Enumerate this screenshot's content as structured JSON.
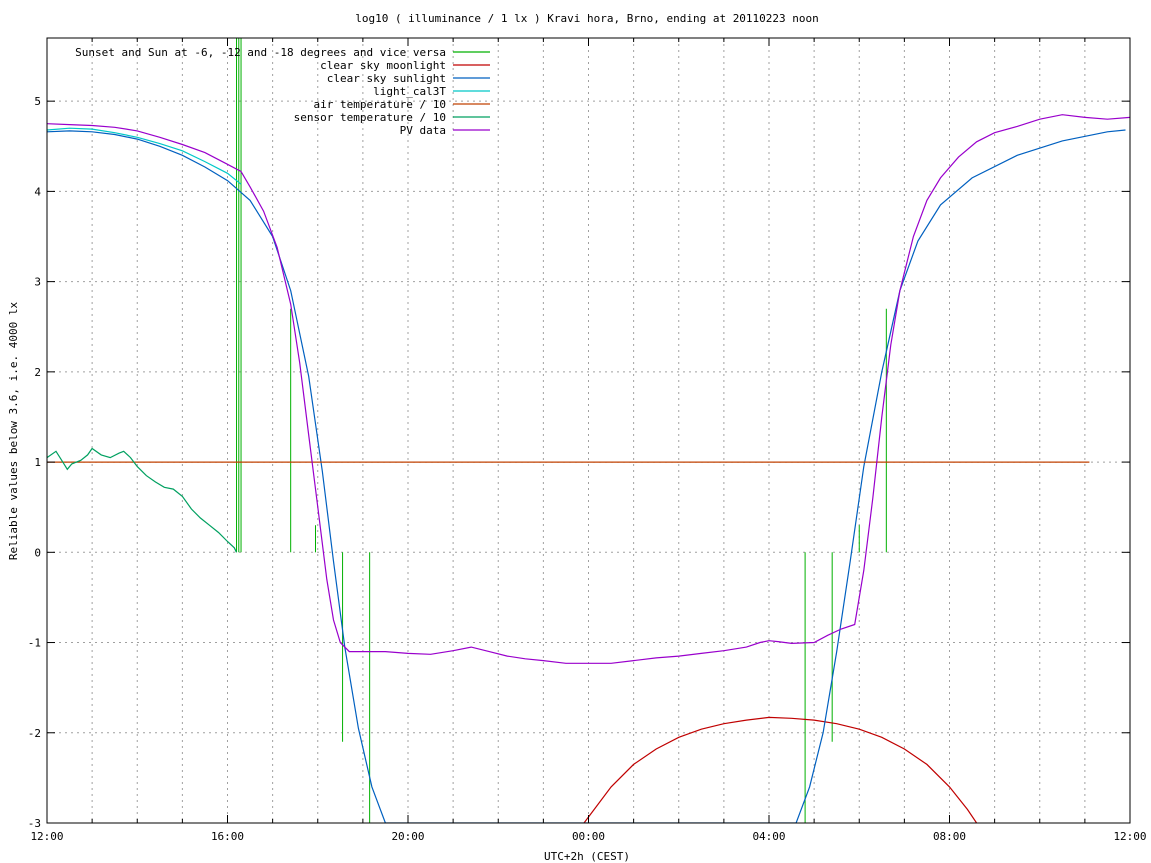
{
  "chart_data": {
    "type": "line",
    "title": "log10 ( illuminance / 1 lx ) Kravi hora, Brno, ending at 20110223 noon",
    "xlabel": "UTC+2h (CEST)",
    "ylabel": "Reliable values below 3.6, i.e. 4000 lx",
    "xlim": [
      0,
      24
    ],
    "ylim": [
      -3,
      5.7
    ],
    "x_ticks": [
      {
        "value": 0,
        "label": "12:00"
      },
      {
        "value": 4,
        "label": "16:00"
      },
      {
        "value": 8,
        "label": "20:00"
      },
      {
        "value": 12,
        "label": "00:00"
      },
      {
        "value": 16,
        "label": "04:00"
      },
      {
        "value": 20,
        "label": "08:00"
      },
      {
        "value": 24,
        "label": "12:00"
      }
    ],
    "y_ticks": [
      {
        "value": -3,
        "label": "-3"
      },
      {
        "value": -2,
        "label": "-2"
      },
      {
        "value": -1,
        "label": "-1"
      },
      {
        "value": 0,
        "label": "0"
      },
      {
        "value": 1,
        "label": "1"
      },
      {
        "value": 2,
        "label": "2"
      },
      {
        "value": 3,
        "label": "3"
      },
      {
        "value": 4,
        "label": "4"
      },
      {
        "value": 5,
        "label": "5"
      }
    ],
    "x_minor_step": 1,
    "grid": true,
    "legend_position": "top-left",
    "series": [
      {
        "name": "Sunset and Sun at -6, -12 and -18 degrees and vice versa",
        "color": "#00b000",
        "style": "impulses",
        "impulses": [
          {
            "x": 4.2,
            "y": 5.7
          },
          {
            "x": 4.25,
            "y": 5.7
          },
          {
            "x": 4.3,
            "y": 5.7
          },
          {
            "x": 5.4,
            "y": 2.7
          },
          {
            "x": 5.95,
            "y": 0.3
          },
          {
            "x": 6.55,
            "y": -2.1
          },
          {
            "x": 7.15,
            "y": -3
          },
          {
            "x": 16.8,
            "y": -3
          },
          {
            "x": 17.4,
            "y": -2.1
          },
          {
            "x": 18.0,
            "y": 0.3
          },
          {
            "x": 18.6,
            "y": 2.7
          }
        ]
      },
      {
        "name": "clear sky moonlight",
        "color": "#c00000",
        "points": [
          [
            11.9,
            -3
          ],
          [
            12.5,
            -2.6
          ],
          [
            13,
            -2.35
          ],
          [
            13.5,
            -2.18
          ],
          [
            14,
            -2.05
          ],
          [
            14.5,
            -1.96
          ],
          [
            15,
            -1.9
          ],
          [
            15.5,
            -1.86
          ],
          [
            16,
            -1.83
          ],
          [
            16.5,
            -1.84
          ],
          [
            17,
            -1.86
          ],
          [
            17.5,
            -1.9
          ],
          [
            18,
            -1.96
          ],
          [
            18.5,
            -2.05
          ],
          [
            19,
            -2.18
          ],
          [
            19.5,
            -2.35
          ],
          [
            20,
            -2.6
          ],
          [
            20.4,
            -2.85
          ],
          [
            20.6,
            -3
          ]
        ]
      },
      {
        "name": "clear sky sunlight",
        "color": "#0060c0",
        "points": [
          [
            0,
            4.66
          ],
          [
            0.5,
            4.67
          ],
          [
            1,
            4.66
          ],
          [
            1.5,
            4.63
          ],
          [
            2,
            4.58
          ],
          [
            2.5,
            4.5
          ],
          [
            3,
            4.4
          ],
          [
            3.5,
            4.27
          ],
          [
            4,
            4.12
          ],
          [
            4.5,
            3.9
          ],
          [
            5,
            3.5
          ],
          [
            5.4,
            2.9
          ],
          [
            5.8,
            1.95
          ],
          [
            6.1,
            0.9
          ],
          [
            6.35,
            -0.1
          ],
          [
            6.6,
            -1.05
          ],
          [
            6.9,
            -1.95
          ],
          [
            7.2,
            -2.6
          ],
          [
            7.5,
            -3
          ],
          [
            16.6,
            -3
          ],
          [
            16.9,
            -2.6
          ],
          [
            17.2,
            -2.0
          ],
          [
            17.5,
            -1.1
          ],
          [
            17.8,
            -0.1
          ],
          [
            18.1,
            0.95
          ],
          [
            18.5,
            2.0
          ],
          [
            18.9,
            2.9
          ],
          [
            19.3,
            3.45
          ],
          [
            19.8,
            3.85
          ],
          [
            20.5,
            4.15
          ],
          [
            21.5,
            4.4
          ],
          [
            22.5,
            4.56
          ],
          [
            23.5,
            4.66
          ],
          [
            23.9,
            4.68
          ]
        ]
      },
      {
        "name": "light_cal3T",
        "color": "#00c8c8",
        "points": [
          [
            0,
            4.68
          ],
          [
            0.5,
            4.7
          ],
          [
            1,
            4.69
          ],
          [
            1.5,
            4.65
          ],
          [
            2,
            4.6
          ],
          [
            2.5,
            4.53
          ],
          [
            3,
            4.45
          ],
          [
            3.5,
            4.33
          ],
          [
            4,
            4.2
          ],
          [
            4.3,
            4.08
          ]
        ]
      },
      {
        "name": "air temperature / 10",
        "color": "#c04000",
        "points": [
          [
            0,
            1.0
          ],
          [
            23.1,
            1.0
          ]
        ]
      },
      {
        "name": "sensor temperature / 10",
        "color": "#00a060",
        "points": [
          [
            0,
            1.05
          ],
          [
            0.2,
            1.12
          ],
          [
            0.35,
            1.0
          ],
          [
            0.45,
            0.92
          ],
          [
            0.55,
            0.98
          ],
          [
            0.75,
            1.02
          ],
          [
            0.9,
            1.08
          ],
          [
            1.0,
            1.15
          ],
          [
            1.2,
            1.08
          ],
          [
            1.4,
            1.05
          ],
          [
            1.6,
            1.1
          ],
          [
            1.7,
            1.12
          ],
          [
            1.85,
            1.05
          ],
          [
            2.0,
            0.95
          ],
          [
            2.2,
            0.85
          ],
          [
            2.4,
            0.78
          ],
          [
            2.6,
            0.72
          ],
          [
            2.8,
            0.7
          ],
          [
            3.0,
            0.62
          ],
          [
            3.2,
            0.48
          ],
          [
            3.4,
            0.38
          ],
          [
            3.6,
            0.3
          ],
          [
            3.8,
            0.22
          ],
          [
            4.0,
            0.12
          ],
          [
            4.15,
            0.05
          ],
          [
            4.2,
            0.0
          ]
        ]
      },
      {
        "name": "PV data",
        "color": "#9900cc",
        "points": [
          [
            0,
            4.75
          ],
          [
            0.5,
            4.74
          ],
          [
            1,
            4.73
          ],
          [
            1.5,
            4.71
          ],
          [
            2,
            4.67
          ],
          [
            2.5,
            4.6
          ],
          [
            3,
            4.52
          ],
          [
            3.5,
            4.43
          ],
          [
            4,
            4.3
          ],
          [
            4.3,
            4.22
          ],
          [
            4.5,
            4.05
          ],
          [
            4.8,
            3.78
          ],
          [
            5.1,
            3.38
          ],
          [
            5.4,
            2.75
          ],
          [
            5.6,
            2.1
          ],
          [
            5.8,
            1.3
          ],
          [
            6.0,
            0.5
          ],
          [
            6.2,
            -0.3
          ],
          [
            6.35,
            -0.75
          ],
          [
            6.5,
            -1.0
          ],
          [
            6.7,
            -1.1
          ],
          [
            7.0,
            -1.1
          ],
          [
            7.5,
            -1.1
          ],
          [
            8.0,
            -1.12
          ],
          [
            8.5,
            -1.13
          ],
          [
            9.0,
            -1.09
          ],
          [
            9.4,
            -1.05
          ],
          [
            9.8,
            -1.1
          ],
          [
            10.2,
            -1.15
          ],
          [
            10.6,
            -1.18
          ],
          [
            11.0,
            -1.2
          ],
          [
            11.5,
            -1.23
          ],
          [
            12.0,
            -1.23
          ],
          [
            12.5,
            -1.23
          ],
          [
            13.0,
            -1.2
          ],
          [
            13.5,
            -1.17
          ],
          [
            14.0,
            -1.15
          ],
          [
            14.5,
            -1.12
          ],
          [
            15.0,
            -1.09
          ],
          [
            15.5,
            -1.05
          ],
          [
            15.8,
            -1.0
          ],
          [
            16.0,
            -0.98
          ],
          [
            16.2,
            -0.99
          ],
          [
            16.5,
            -1.01
          ],
          [
            17.0,
            -1.0
          ],
          [
            17.3,
            -0.92
          ],
          [
            17.6,
            -0.85
          ],
          [
            17.9,
            -0.8
          ],
          [
            18.1,
            -0.2
          ],
          [
            18.3,
            0.6
          ],
          [
            18.5,
            1.5
          ],
          [
            18.7,
            2.3
          ],
          [
            18.9,
            2.9
          ],
          [
            19.2,
            3.5
          ],
          [
            19.5,
            3.9
          ],
          [
            19.8,
            4.15
          ],
          [
            20.2,
            4.38
          ],
          [
            20.6,
            4.55
          ],
          [
            21,
            4.65
          ],
          [
            21.5,
            4.72
          ],
          [
            22,
            4.8
          ],
          [
            22.5,
            4.85
          ],
          [
            23,
            4.82
          ],
          [
            23.5,
            4.8
          ],
          [
            24,
            4.82
          ]
        ]
      }
    ]
  }
}
